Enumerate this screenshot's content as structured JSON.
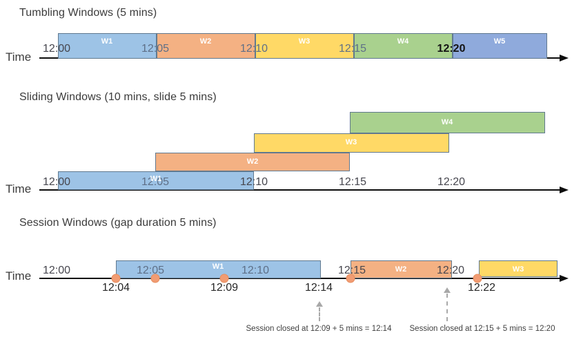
{
  "colors": {
    "blue": "#9DC3E6",
    "orange": "#F4B183",
    "yellow": "#FFD966",
    "green": "#A9D18E",
    "periwinkle": "#8FAADC",
    "box_border": "#60798F",
    "event_dot": "#F19C73",
    "dashed_arrow": "#A8A8A8",
    "text_dark": "#3B3B3B"
  },
  "diagrams": [
    {
      "key": "tumbling",
      "title": "Tumbling Windows (5 mins)",
      "axis_label": "Time",
      "ticks": [
        {
          "label": "12:00",
          "style": "dark"
        },
        {
          "label": "12:05",
          "style": "muted"
        },
        {
          "label": "12:10",
          "style": "muted"
        },
        {
          "label": "12:15",
          "style": "muted"
        },
        {
          "label": "12:20",
          "style": "bold"
        }
      ],
      "windows": [
        {
          "label": "W1",
          "color": "blue",
          "start": "12:00",
          "end": "12:05"
        },
        {
          "label": "W2",
          "color": "orange",
          "start": "12:05",
          "end": "12:10"
        },
        {
          "label": "W3",
          "color": "yellow",
          "start": "12:10",
          "end": "12:15"
        },
        {
          "label": "W4",
          "color": "green",
          "start": "12:15",
          "end": "12:20"
        },
        {
          "label": "W5",
          "color": "periwinkle",
          "start": "12:20"
        }
      ]
    },
    {
      "key": "sliding",
      "title": "Sliding Windows (10 mins, slide 5 mins)",
      "axis_label": "Time",
      "ticks": [
        {
          "label": "12:00",
          "style": "dark"
        },
        {
          "label": "12:05",
          "style": "muted"
        },
        {
          "label": "12:10",
          "style": "dark"
        },
        {
          "label": "12:15",
          "style": "dark"
        },
        {
          "label": "12:20",
          "style": "dark"
        }
      ],
      "windows": [
        {
          "label": "W1",
          "color": "blue",
          "start": "12:00",
          "end": "12:10"
        },
        {
          "label": "W2",
          "color": "orange",
          "start": "12:05",
          "end": "12:15"
        },
        {
          "label": "W3",
          "color": "yellow",
          "start": "12:10",
          "end": "12:20"
        },
        {
          "label": "W4",
          "color": "green",
          "start": "12:15"
        }
      ]
    },
    {
      "key": "session",
      "title": "Session Windows (gap duration 5 mins)",
      "axis_label": "Time",
      "ticks": [
        {
          "label": "12:00",
          "style": "dark"
        },
        {
          "label": "12:05",
          "style": "muted"
        },
        {
          "label": "12:10",
          "style": "muted"
        },
        {
          "label": "12:15",
          "style": "dark"
        },
        {
          "label": "12:20",
          "style": "dark"
        }
      ],
      "windows": [
        {
          "label": "W1",
          "color": "blue",
          "start": "12:04",
          "end": "12:14"
        },
        {
          "label": "W2",
          "color": "orange",
          "start": "12:15",
          "end": "12:20"
        },
        {
          "label": "W3",
          "color": "yellow",
          "start": "12:22"
        }
      ],
      "event_dot_count": 5,
      "below_line_labels": [
        "12:04",
        "12:09",
        "12:14",
        "12:22"
      ],
      "annotations": [
        {
          "text": "Session closed at 12:09 + 5 mins = 12:14",
          "points_at": "12:14"
        },
        {
          "text": "Session closed at 12:15 + 5 mins = 12:20",
          "points_at": "12:20"
        }
      ]
    }
  ]
}
